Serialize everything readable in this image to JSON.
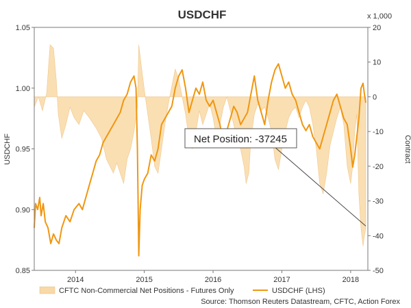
{
  "chart_data": {
    "type": "line",
    "title": "USDCHF",
    "ylabel": "USDCHF",
    "y2label": "Contract",
    "y2_unit": "x 1,000",
    "ylim": [
      0.85,
      1.05
    ],
    "y2lim": [
      -50,
      20
    ],
    "yticks": [
      "0.85",
      "0.90",
      "0.95",
      "1.00",
      "1.05"
    ],
    "y2ticks": [
      "-50",
      "-40",
      "-30",
      "-20",
      "-10",
      "0",
      "10",
      "20"
    ],
    "xlim": [
      2013.4,
      2018.25
    ],
    "xticks": [
      {
        "label": "2014",
        "x": 2014.0
      },
      {
        "label": "2015",
        "x": 2015.0
      },
      {
        "label": "2016",
        "x": 2016.0
      },
      {
        "label": "2017",
        "x": 2017.0
      },
      {
        "label": "2018",
        "x": 2018.0
      }
    ],
    "grid": false,
    "legend_position": "bottom",
    "annotation": "Net Position: -37245",
    "source": "Source: Thomson Reuters Datastream, CFTC, Action Forex",
    "series": [
      {
        "name": "CFTC Non-Commercial Net Positions - Futures Only",
        "type": "area",
        "axis": "right",
        "color": "#f9d9a6",
        "points": [
          [
            2013.4,
            -3
          ],
          [
            2013.46,
            0
          ],
          [
            2013.52,
            -4
          ],
          [
            2013.58,
            1
          ],
          [
            2013.63,
            15
          ],
          [
            2013.68,
            14
          ],
          [
            2013.72,
            5
          ],
          [
            2013.75,
            -5
          ],
          [
            2013.8,
            -12
          ],
          [
            2013.86,
            -8
          ],
          [
            2013.92,
            -3
          ],
          [
            2013.98,
            -6
          ],
          [
            2014.05,
            -8
          ],
          [
            2014.12,
            -4
          ],
          [
            2014.2,
            -6
          ],
          [
            2014.3,
            -9
          ],
          [
            2014.38,
            -12
          ],
          [
            2014.45,
            -18
          ],
          [
            2014.5,
            -20
          ],
          [
            2014.55,
            -22
          ],
          [
            2014.6,
            -19
          ],
          [
            2014.65,
            -22
          ],
          [
            2014.7,
            -25
          ],
          [
            2014.75,
            -18
          ],
          [
            2014.8,
            -15
          ],
          [
            2014.85,
            -10
          ],
          [
            2014.9,
            -3
          ],
          [
            2014.92,
            15
          ],
          [
            2014.95,
            10
          ],
          [
            2015.0,
            2
          ],
          [
            2015.05,
            -5
          ],
          [
            2015.1,
            -12
          ],
          [
            2015.15,
            -20
          ],
          [
            2015.2,
            -22
          ],
          [
            2015.25,
            -15
          ],
          [
            2015.3,
            -8
          ],
          [
            2015.35,
            -2
          ],
          [
            2015.4,
            3
          ],
          [
            2015.45,
            8
          ],
          [
            2015.5,
            5
          ],
          [
            2015.55,
            0
          ],
          [
            2015.6,
            -5
          ],
          [
            2015.65,
            -12
          ],
          [
            2015.7,
            -15
          ],
          [
            2015.75,
            -10
          ],
          [
            2015.8,
            -4
          ],
          [
            2015.85,
            -8
          ],
          [
            2015.9,
            -5
          ],
          [
            2015.95,
            -2
          ],
          [
            2016.0,
            -6
          ],
          [
            2016.05,
            -12
          ],
          [
            2016.1,
            -8
          ],
          [
            2016.15,
            -3
          ],
          [
            2016.2,
            0
          ],
          [
            2016.25,
            -4
          ],
          [
            2016.3,
            -8
          ],
          [
            2016.35,
            -12
          ],
          [
            2016.4,
            -15
          ],
          [
            2016.45,
            -20
          ],
          [
            2016.48,
            -25
          ],
          [
            2016.52,
            -22
          ],
          [
            2016.55,
            -12
          ],
          [
            2016.6,
            -5
          ],
          [
            2016.65,
            -2
          ],
          [
            2016.7,
            -4
          ],
          [
            2016.75,
            -3
          ],
          [
            2016.8,
            -6
          ],
          [
            2016.85,
            -10
          ],
          [
            2016.9,
            -18
          ],
          [
            2016.95,
            -21
          ],
          [
            2017.0,
            -15
          ],
          [
            2017.05,
            -10
          ],
          [
            2017.1,
            -6
          ],
          [
            2017.15,
            -4
          ],
          [
            2017.2,
            -3
          ],
          [
            2017.25,
            -6
          ],
          [
            2017.3,
            -3
          ],
          [
            2017.35,
            -1
          ],
          [
            2017.4,
            -3
          ],
          [
            2017.45,
            -8
          ],
          [
            2017.5,
            -15
          ],
          [
            2017.55,
            -25
          ],
          [
            2017.6,
            -28
          ],
          [
            2017.65,
            -22
          ],
          [
            2017.7,
            -14
          ],
          [
            2017.75,
            -10
          ],
          [
            2017.8,
            -6
          ],
          [
            2017.85,
            -3
          ],
          [
            2017.9,
            -8
          ],
          [
            2017.95,
            -20
          ],
          [
            2018.0,
            -25
          ],
          [
            2018.03,
            -20
          ],
          [
            2018.06,
            -10
          ],
          [
            2018.09,
            -5
          ],
          [
            2018.12,
            -28
          ],
          [
            2018.15,
            -38
          ],
          [
            2018.18,
            -43
          ],
          [
            2018.2,
            -40
          ],
          [
            2018.22,
            -38
          ]
        ]
      },
      {
        "name": "USDCHF (LHS)",
        "type": "line",
        "axis": "left",
        "color": "#f0960f",
        "points": [
          [
            2013.4,
            0.885
          ],
          [
            2013.42,
            0.905
          ],
          [
            2013.45,
            0.9
          ],
          [
            2013.48,
            0.91
          ],
          [
            2013.5,
            0.895
          ],
          [
            2013.53,
            0.905
          ],
          [
            2013.56,
            0.89
          ],
          [
            2013.6,
            0.885
          ],
          [
            2013.64,
            0.872
          ],
          [
            2013.68,
            0.88
          ],
          [
            2013.72,
            0.875
          ],
          [
            2013.76,
            0.872
          ],
          [
            2013.8,
            0.885
          ],
          [
            2013.86,
            0.895
          ],
          [
            2013.92,
            0.89
          ],
          [
            2013.98,
            0.9
          ],
          [
            2014.05,
            0.905
          ],
          [
            2014.1,
            0.9
          ],
          [
            2014.15,
            0.91
          ],
          [
            2014.2,
            0.92
          ],
          [
            2014.25,
            0.93
          ],
          [
            2014.3,
            0.94
          ],
          [
            2014.35,
            0.945
          ],
          [
            2014.4,
            0.955
          ],
          [
            2014.45,
            0.96
          ],
          [
            2014.5,
            0.965
          ],
          [
            2014.55,
            0.97
          ],
          [
            2014.6,
            0.975
          ],
          [
            2014.65,
            0.98
          ],
          [
            2014.7,
            0.99
          ],
          [
            2014.75,
            0.995
          ],
          [
            2014.8,
            1.005
          ],
          [
            2014.85,
            1.01
          ],
          [
            2014.88,
            1.0
          ],
          [
            2014.9,
            0.95
          ],
          [
            2014.92,
            0.862
          ],
          [
            2014.94,
            0.9
          ],
          [
            2014.97,
            0.92
          ],
          [
            2015.0,
            0.925
          ],
          [
            2015.05,
            0.93
          ],
          [
            2015.1,
            0.945
          ],
          [
            2015.15,
            0.94
          ],
          [
            2015.2,
            0.95
          ],
          [
            2015.25,
            0.97
          ],
          [
            2015.3,
            0.975
          ],
          [
            2015.35,
            0.98
          ],
          [
            2015.4,
            0.985
          ],
          [
            2015.45,
            1.0
          ],
          [
            2015.5,
            1.01
          ],
          [
            2015.55,
            1.015
          ],
          [
            2015.6,
            1.0
          ],
          [
            2015.65,
            0.98
          ],
          [
            2015.7,
            0.99
          ],
          [
            2015.75,
            1.0
          ],
          [
            2015.8,
            0.995
          ],
          [
            2015.85,
            1.005
          ],
          [
            2015.9,
            0.99
          ],
          [
            2015.95,
            0.985
          ],
          [
            2016.0,
            0.99
          ],
          [
            2016.05,
            0.98
          ],
          [
            2016.1,
            0.97
          ],
          [
            2016.15,
            0.955
          ],
          [
            2016.2,
            0.965
          ],
          [
            2016.25,
            0.975
          ],
          [
            2016.3,
            0.985
          ],
          [
            2016.35,
            0.98
          ],
          [
            2016.4,
            0.97
          ],
          [
            2016.45,
            0.975
          ],
          [
            2016.5,
            0.98
          ],
          [
            2016.55,
            0.995
          ],
          [
            2016.6,
            1.01
          ],
          [
            2016.65,
            0.99
          ],
          [
            2016.7,
            0.98
          ],
          [
            2016.75,
            0.97
          ],
          [
            2016.8,
            0.99
          ],
          [
            2016.85,
            1.005
          ],
          [
            2016.9,
            1.015
          ],
          [
            2016.95,
            1.02
          ],
          [
            2017.0,
            1.01
          ],
          [
            2017.05,
            1.0
          ],
          [
            2017.1,
            1.005
          ],
          [
            2017.15,
            0.995
          ],
          [
            2017.2,
            0.99
          ],
          [
            2017.25,
            0.98
          ],
          [
            2017.3,
            0.97
          ],
          [
            2017.35,
            0.965
          ],
          [
            2017.4,
            0.97
          ],
          [
            2017.45,
            0.96
          ],
          [
            2017.5,
            0.955
          ],
          [
            2017.55,
            0.95
          ],
          [
            2017.6,
            0.96
          ],
          [
            2017.65,
            0.97
          ],
          [
            2017.7,
            0.98
          ],
          [
            2017.75,
            0.99
          ],
          [
            2017.8,
            0.995
          ],
          [
            2017.85,
            0.985
          ],
          [
            2017.9,
            0.975
          ],
          [
            2017.95,
            0.97
          ],
          [
            2018.0,
            0.95
          ],
          [
            2018.03,
            0.935
          ],
          [
            2018.06,
            0.945
          ],
          [
            2018.09,
            0.96
          ],
          [
            2018.12,
            0.975
          ],
          [
            2018.15,
            1.0
          ],
          [
            2018.18,
            1.004
          ],
          [
            2018.2,
            0.995
          ],
          [
            2018.22,
            0.988
          ]
        ]
      }
    ]
  }
}
